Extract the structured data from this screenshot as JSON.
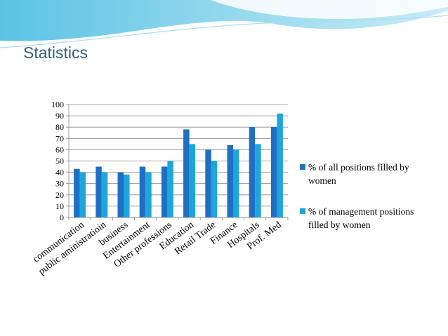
{
  "slide": {
    "title": "Statistics"
  },
  "colors": {
    "series1": "#1f6fc4",
    "series2": "#1ea6da",
    "grid": "#868686",
    "title": "#2f5f7b"
  },
  "chart_data": {
    "type": "bar",
    "title": "",
    "xlabel": "",
    "ylabel": "",
    "ylim": [
      0,
      100
    ],
    "yticks": [
      0,
      10,
      20,
      30,
      40,
      50,
      60,
      70,
      80,
      90,
      100
    ],
    "grid": true,
    "legend_position": "right",
    "categories": [
      "communication",
      "public aministratioin",
      "business",
      "Entertainment",
      "Other professions",
      "Education",
      "Retail Trade",
      "Finance",
      "Hospitals",
      "Prof. Med"
    ],
    "series": [
      {
        "name": "% of all positions filled by women",
        "values": [
          43,
          45,
          40,
          45,
          45,
          78,
          60,
          64,
          80,
          80
        ]
      },
      {
        "name": "% of management positions filled by women",
        "values": [
          40,
          40,
          38,
          40,
          50,
          65,
          50,
          60,
          65,
          92
        ]
      }
    ]
  }
}
